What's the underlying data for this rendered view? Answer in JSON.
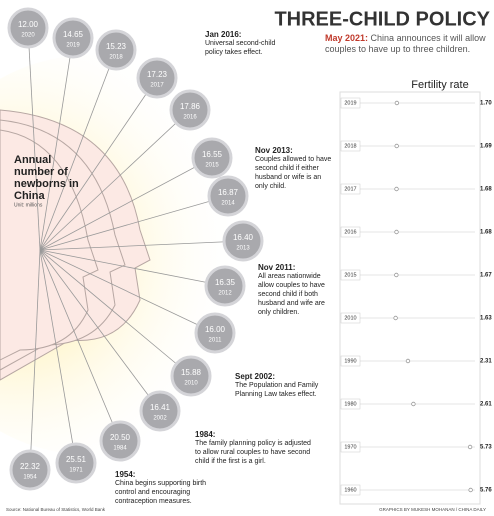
{
  "header": {
    "title": "THREE-CHILD POLICY",
    "lead": "May 2021:",
    "subtitle": "China announces it will allow couples to have up to three children."
  },
  "newborns": {
    "title": "Annual number of newborns in China",
    "unit": "Unit: millions",
    "items": [
      {
        "value": "12.00",
        "year": "2020"
      },
      {
        "value": "14.65",
        "year": "2019"
      },
      {
        "value": "15.23",
        "year": "2018"
      },
      {
        "value": "17.23",
        "year": "2017"
      },
      {
        "value": "17.86",
        "year": "2016"
      },
      {
        "value": "16.55",
        "year": "2015"
      },
      {
        "value": "16.87",
        "year": "2014"
      },
      {
        "value": "16.40",
        "year": "2013"
      },
      {
        "value": "16.35",
        "year": "2012"
      },
      {
        "value": "16.00",
        "year": "2011"
      },
      {
        "value": "15.88",
        "year": "2010"
      },
      {
        "value": "16.41",
        "year": "2002"
      },
      {
        "value": "20.50",
        "year": "1984"
      },
      {
        "value": "25.51",
        "year": "1971"
      },
      {
        "value": "22.32",
        "year": "1954"
      }
    ]
  },
  "annotations": [
    {
      "date": "Jan 2016:",
      "text": "Universal second-child policy takes effect."
    },
    {
      "date": "Nov 2013:",
      "text": "Couples allowed to have second child if either husband or wife is an only child."
    },
    {
      "date": "Nov 2011:",
      "text": "All areas nationwide allow couples to have second child if both husband and wife are only children."
    },
    {
      "date": "Sept 2002:",
      "text": "The Population and Family Planning Law takes effect."
    },
    {
      "date": "1984:",
      "text": "The family planning policy is adjusted to allow rural couples to have second child if the first is a girl."
    },
    {
      "date": "1954:",
      "text": "China begins supporting birth control and encouraging contraception measures."
    }
  ],
  "chart_data": {
    "type": "dot",
    "title": "Fertility rate",
    "categories": [
      "2019",
      "2018",
      "2017",
      "2016",
      "2015",
      "2010",
      "1990",
      "1980",
      "1970",
      "1960"
    ],
    "values": [
      1.7,
      1.69,
      1.68,
      1.68,
      1.67,
      1.63,
      2.31,
      2.61,
      5.73,
      5.76
    ],
    "value_labels": [
      "1.70",
      "1.69",
      "1.68",
      "1.68",
      "1.67",
      "1.63",
      "2.31",
      "2.61",
      "5.73",
      "5.76"
    ],
    "xlim": [
      0,
      6
    ],
    "color": "#999999"
  },
  "footer": {
    "source": "Source: National Bureau of Statistics, World Bank",
    "credit": "GRAPHICS BY MUKESH MOHANAN / CHINA DAILY"
  }
}
